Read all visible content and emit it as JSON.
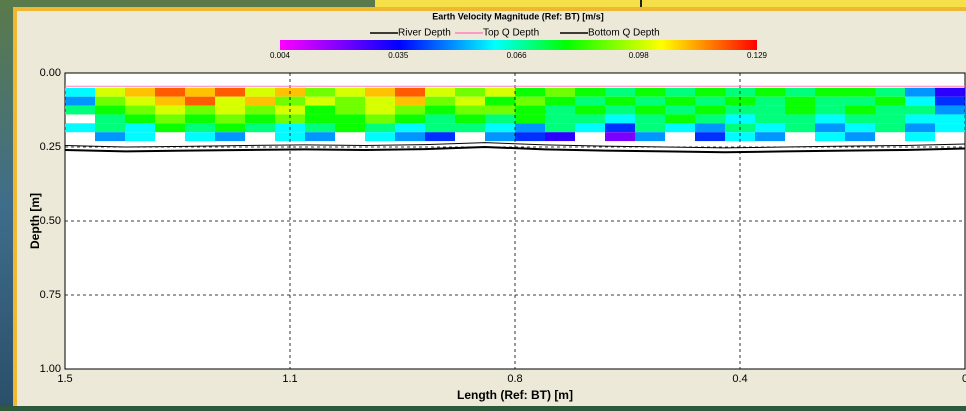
{
  "chart_data": {
    "type": "heatmap",
    "title": "Earth Velocity Magnitude (Ref: BT) [m/s]",
    "xlabel": "Length (Ref: BT) [m]",
    "ylabel": "Depth [m]",
    "xlim": [
      1.5,
      0
    ],
    "xticks": [
      {
        "value": 1.5,
        "label": "1.5"
      },
      {
        "value": 1.125,
        "label": "1.1"
      },
      {
        "value": 0.75,
        "label": "0.8"
      },
      {
        "value": 0.375,
        "label": "0.4"
      },
      {
        "value": 0,
        "label": "0"
      }
    ],
    "ylim": [
      0,
      1
    ],
    "yticks": [
      {
        "value": 0,
        "label": "0.00"
      },
      {
        "value": 0.25,
        "label": "0.25"
      },
      {
        "value": 0.5,
        "label": "0.50"
      },
      {
        "value": 0.75,
        "label": "0.75"
      },
      {
        "value": 1,
        "label": "1.00"
      }
    ],
    "grid": true,
    "clim": [
      0.004,
      0.129
    ],
    "cticks": [
      0.004,
      0.035,
      0.066,
      0.098,
      0.129
    ],
    "x_edges": [
      1.5,
      1.45,
      1.4,
      1.35,
      1.3,
      1.25,
      1.2,
      1.15,
      1.1,
      1.05,
      1.0,
      0.95,
      0.9,
      0.85,
      0.8,
      0.75,
      0.7,
      0.65,
      0.6,
      0.55,
      0.5,
      0.45,
      0.4,
      0.35,
      0.3,
      0.25,
      0.2,
      0.15,
      0.1,
      0.05,
      0
    ],
    "y_edges": [
      0.05,
      0.08,
      0.11,
      0.14,
      0.17,
      0.2,
      0.23
    ],
    "z": [
      [
        0.06,
        0.1,
        0.11,
        0.12,
        0.11,
        0.12,
        0.1,
        0.11,
        0.09,
        0.1,
        0.11,
        0.12,
        0.1,
        0.09,
        0.1,
        0.08,
        0.09,
        0.08,
        0.07,
        0.08,
        0.07,
        0.08,
        0.07,
        0.08,
        0.07,
        0.08,
        0.08,
        0.07,
        0.05,
        0.03
      ],
      [
        0.05,
        0.09,
        0.1,
        0.11,
        0.12,
        0.1,
        0.11,
        0.09,
        0.1,
        0.09,
        0.1,
        0.11,
        0.09,
        0.1,
        0.08,
        0.09,
        0.08,
        0.07,
        0.08,
        0.07,
        0.08,
        0.07,
        0.08,
        0.07,
        0.08,
        0.07,
        0.07,
        0.08,
        0.06,
        0.04
      ],
      [
        0.07,
        0.08,
        0.09,
        0.1,
        0.09,
        0.1,
        0.09,
        0.1,
        0.08,
        0.09,
        0.1,
        0.09,
        0.08,
        0.09,
        0.09,
        0.08,
        0.07,
        0.08,
        0.07,
        0.08,
        0.07,
        0.08,
        0.07,
        0.07,
        0.08,
        0.07,
        0.08,
        0.07,
        0.07,
        0.05
      ],
      [
        null,
        0.07,
        0.08,
        0.09,
        0.08,
        0.09,
        0.08,
        0.09,
        0.08,
        0.08,
        0.09,
        0.08,
        0.07,
        0.08,
        0.07,
        0.08,
        0.07,
        0.07,
        0.06,
        0.07,
        0.08,
        0.07,
        0.06,
        0.07,
        0.07,
        0.06,
        0.07,
        0.07,
        0.06,
        0.06
      ],
      [
        0.06,
        0.07,
        0.06,
        0.08,
        0.07,
        0.08,
        0.07,
        0.06,
        0.07,
        0.08,
        0.07,
        0.06,
        0.07,
        0.07,
        0.06,
        0.05,
        0.07,
        0.06,
        0.04,
        0.07,
        0.06,
        0.05,
        0.07,
        0.06,
        0.07,
        0.05,
        0.06,
        0.07,
        0.05,
        0.06
      ],
      [
        null,
        0.05,
        0.06,
        null,
        0.06,
        0.05,
        null,
        0.06,
        0.05,
        null,
        0.06,
        0.05,
        0.04,
        null,
        0.05,
        0.04,
        0.03,
        null,
        0.02,
        0.05,
        null,
        0.04,
        0.06,
        0.05,
        null,
        0.06,
        0.05,
        null,
        0.06,
        null
      ]
    ],
    "series": [
      {
        "name": "River Depth",
        "color": "#000000",
        "x": [
          1.5,
          1.4,
          1.3,
          1.2,
          1.1,
          1.0,
          0.9,
          0.8,
          0.7,
          0.6,
          0.5,
          0.4,
          0.3,
          0.2,
          0.1,
          0
        ],
        "values": [
          0.26,
          0.265,
          0.262,
          0.26,
          0.258,
          0.26,
          0.257,
          0.25,
          0.258,
          0.262,
          0.265,
          0.268,
          0.265,
          0.262,
          0.26,
          0.255
        ]
      },
      {
        "name": "Top Q Depth",
        "color": "#ff80c0",
        "x": [
          1.5,
          1.0,
          0.5,
          0
        ],
        "values": [
          0.045,
          0.045,
          0.045,
          0.045
        ]
      },
      {
        "name": "Bottom Q Depth",
        "color": "#000000",
        "x": [
          1.5,
          1.4,
          1.3,
          1.2,
          1.1,
          1.0,
          0.9,
          0.8,
          0.7,
          0.6,
          0.5,
          0.4,
          0.3,
          0.2,
          0.1,
          0
        ],
        "values": [
          0.245,
          0.25,
          0.248,
          0.245,
          0.243,
          0.245,
          0.242,
          0.235,
          0.243,
          0.247,
          0.25,
          0.253,
          0.25,
          0.247,
          0.245,
          0.24
        ]
      }
    ]
  }
}
